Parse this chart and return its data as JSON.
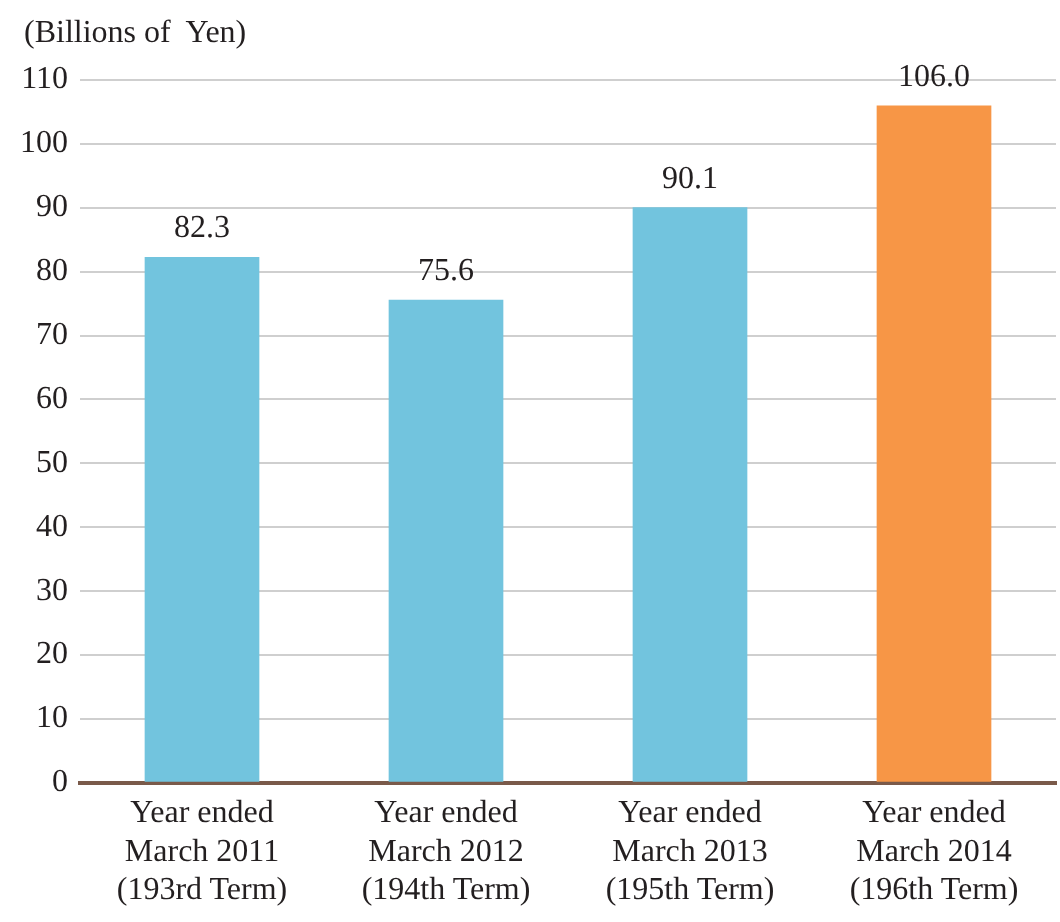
{
  "chart_data": {
    "type": "bar",
    "ylabel": "(Billions of  Yen)",
    "categories": [
      "Year ended\nMarch 2011\n(193rd Term)",
      "Year ended\nMarch 2012\n(194th Term)",
      "Year ended\nMarch 2013\n(195th Term)",
      "Year ended\nMarch 2014\n(196th Term)"
    ],
    "values": [
      82.3,
      75.6,
      90.1,
      106.0
    ],
    "value_labels": [
      "82.3",
      "75.6",
      "90.1",
      "106.0"
    ],
    "colors": [
      "#72c4de",
      "#72c4de",
      "#72c4de",
      "#f79646"
    ],
    "ylim": [
      0,
      110
    ],
    "yticks": [
      0,
      10,
      20,
      30,
      40,
      50,
      60,
      70,
      80,
      90,
      100,
      110
    ],
    "grid": "y"
  }
}
